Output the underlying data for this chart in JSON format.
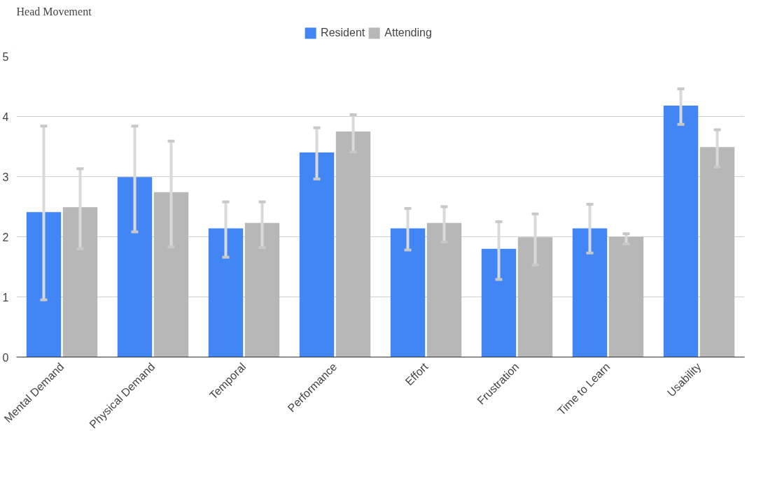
{
  "chart_data": {
    "type": "bar",
    "title": "Head Movement",
    "categories": [
      "Mental Demand",
      "Physical Demand",
      "Temporal",
      "Performance",
      "Effort",
      "Frustration",
      "Time to Learn",
      "Usability"
    ],
    "series": [
      {
        "name": "Resident",
        "color": "#4285f4",
        "values": [
          2.41,
          2.99,
          2.14,
          3.4,
          2.14,
          1.8,
          2.14,
          4.18
        ],
        "errors": [
          [
            0.95,
            3.84
          ],
          [
            2.08,
            3.84
          ],
          [
            1.66,
            2.58
          ],
          [
            2.96,
            3.81
          ],
          [
            1.78,
            2.47
          ],
          [
            1.29,
            2.25
          ],
          [
            1.73,
            2.54
          ],
          [
            3.87,
            4.46
          ]
        ]
      },
      {
        "name": "Attending",
        "color": "#b7b7b7",
        "values": [
          2.49,
          2.74,
          2.23,
          3.75,
          2.23,
          1.99,
          2.0,
          3.49
        ],
        "errors": [
          [
            1.8,
            3.13
          ],
          [
            1.83,
            3.59
          ],
          [
            1.82,
            2.58
          ],
          [
            3.41,
            4.03
          ],
          [
            1.91,
            2.5
          ],
          [
            1.53,
            2.38
          ],
          [
            1.88,
            2.05
          ],
          [
            3.16,
            3.78
          ]
        ]
      }
    ],
    "ylim": [
      0,
      5
    ],
    "yticks": [
      0,
      1,
      2,
      3,
      4,
      5
    ],
    "grid": "y",
    "legend": "top"
  }
}
